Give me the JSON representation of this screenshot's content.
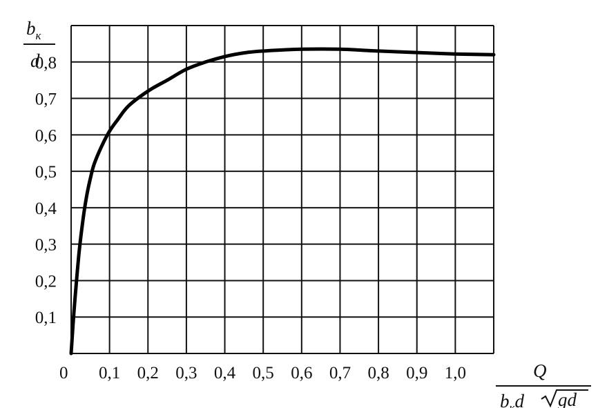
{
  "chart_data": {
    "type": "line",
    "title": "",
    "ylabel": {
      "numerator_main": "b",
      "numerator_sub": "к",
      "denominator": "d"
    },
    "xlabel": {
      "numerator": "Q",
      "den_b": "b",
      "den_sub": "к",
      "den_d": "d",
      "den_root": "gd"
    },
    "xlim": [
      0,
      1.1
    ],
    "ylim": [
      0,
      0.9
    ],
    "grid": true,
    "x_ticks": [
      {
        "v": 0,
        "label": "0"
      },
      {
        "v": 0.1,
        "label": "0,1"
      },
      {
        "v": 0.2,
        "label": "0,2"
      },
      {
        "v": 0.3,
        "label": "0,3"
      },
      {
        "v": 0.4,
        "label": "0,4"
      },
      {
        "v": 0.5,
        "label": "0,5"
      },
      {
        "v": 0.6,
        "label": "0,6"
      },
      {
        "v": 0.7,
        "label": "0,7"
      },
      {
        "v": 0.8,
        "label": "0,8"
      },
      {
        "v": 0.9,
        "label": "0,9"
      },
      {
        "v": 1.0,
        "label": "1,0"
      }
    ],
    "y_ticks": [
      {
        "v": 0.1,
        "label": "0,1"
      },
      {
        "v": 0.2,
        "label": "0,2"
      },
      {
        "v": 0.3,
        "label": "0,3"
      },
      {
        "v": 0.4,
        "label": "0,4"
      },
      {
        "v": 0.5,
        "label": "0,5"
      },
      {
        "v": 0.6,
        "label": "0,6"
      },
      {
        "v": 0.7,
        "label": "0,7"
      },
      {
        "v": 0.8,
        "label": "0,8"
      }
    ],
    "series": [
      {
        "x": [
          0,
          0.005,
          0.01,
          0.02,
          0.03,
          0.04,
          0.05,
          0.06,
          0.08,
          0.1,
          0.12,
          0.15,
          0.2,
          0.25,
          0.3,
          0.35,
          0.4,
          0.45,
          0.5,
          0.6,
          0.7,
          0.8,
          0.9,
          1.0,
          1.1
        ],
        "y": [
          0,
          0.08,
          0.15,
          0.27,
          0.36,
          0.43,
          0.48,
          0.52,
          0.57,
          0.61,
          0.64,
          0.68,
          0.72,
          0.75,
          0.78,
          0.8,
          0.815,
          0.825,
          0.83,
          0.835,
          0.835,
          0.83,
          0.826,
          0.822,
          0.82
        ]
      }
    ]
  }
}
